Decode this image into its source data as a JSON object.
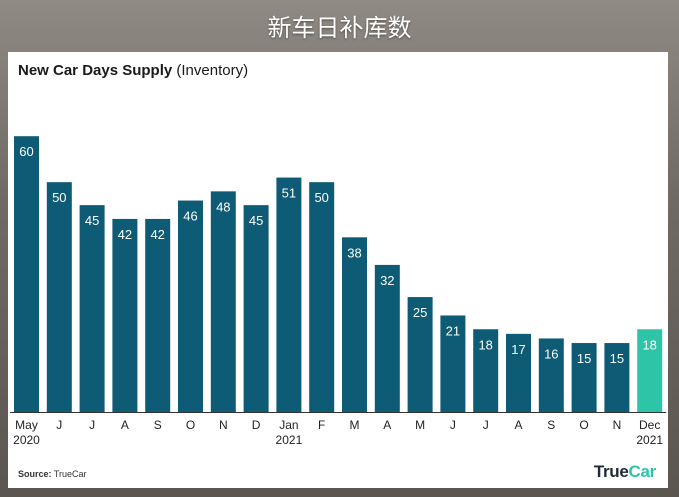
{
  "page_title": "新车日补库数",
  "chart_data": {
    "type": "bar",
    "title_bold": "New Car Days Supply",
    "title_rest": "(Inventory)",
    "categories": [
      "May",
      "J",
      "J",
      "A",
      "S",
      "O",
      "N",
      "D",
      "Jan",
      "F",
      "M",
      "A",
      "M",
      "J",
      "J",
      "A",
      "S",
      "O",
      "N",
      "Dec"
    ],
    "year_labels": [
      "2020",
      "",
      "",
      "",
      "",
      "",
      "",
      "",
      "2021",
      "",
      "",
      "",
      "",
      "",
      "",
      "",
      "",
      "",
      "",
      "2021"
    ],
    "values": [
      60,
      50,
      45,
      42,
      42,
      46,
      48,
      45,
      51,
      50,
      38,
      32,
      25,
      21,
      18,
      17,
      16,
      15,
      15,
      18
    ],
    "value_labels": [
      "60",
      "50",
      "45",
      "42",
      "42",
      "46",
      "48",
      "45",
      "51",
      "50",
      "38",
      "32",
      "25",
      "21",
      "18",
      "17",
      "16",
      "15",
      "15",
      "18"
    ],
    "highlight_index": 19,
    "ylim": [
      0,
      62
    ],
    "grid": false,
    "colors": {
      "bar": "#0d5b74",
      "highlight": "#2ec4a8",
      "axis": "#333333",
      "label": "#ffffff"
    }
  },
  "source_label": "Source:",
  "source_value": "TrueCar",
  "logo": {
    "part1": "True",
    "part2": "Car"
  }
}
